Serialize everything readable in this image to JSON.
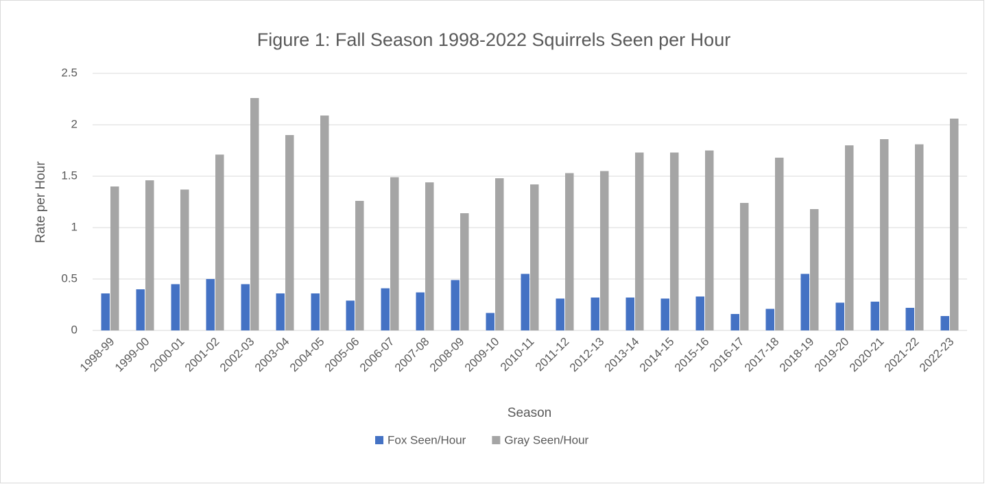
{
  "chart_data": {
    "type": "bar",
    "title": "Figure 1: Fall Season 1998-2022 Squirrels Seen per Hour",
    "x_label": "Season",
    "y_label": "Rate per Hour",
    "categories": [
      "1998-99",
      "1999-00",
      "2000-01",
      "2001-02",
      "2002-03",
      "2003-04",
      "2004-05",
      "2005-06",
      "2006-07",
      "2007-08",
      "2008-09",
      "2009-10",
      "2010-11",
      "2011-12",
      "2012-13",
      "2013-14",
      "2014-15",
      "2015-16",
      "2016-17",
      "2017-18",
      "2018-19",
      "2019-20",
      "2020-21",
      "2021-22",
      "2022-23"
    ],
    "series": [
      {
        "name": "Fox Seen/Hour",
        "color": "#4472c4",
        "values": [
          0.36,
          0.4,
          0.45,
          0.5,
          0.45,
          0.36,
          0.36,
          0.29,
          0.41,
          0.37,
          0.49,
          0.17,
          0.55,
          0.31,
          0.32,
          0.32,
          0.31,
          0.33,
          0.16,
          0.21,
          0.55,
          0.27,
          0.28,
          0.22,
          0.14
        ]
      },
      {
        "name": "Gray Seen/Hour",
        "color": "#a5a5a5",
        "values": [
          1.4,
          1.46,
          1.37,
          1.71,
          2.26,
          1.9,
          2.09,
          1.26,
          1.49,
          1.44,
          1.14,
          1.48,
          1.42,
          1.53,
          1.55,
          1.73,
          1.73,
          1.75,
          1.24,
          1.68,
          1.18,
          1.8,
          1.86,
          1.81,
          2.06
        ]
      }
    ],
    "ylim": [
      0,
      2.5
    ],
    "yticks": [
      0,
      0.5,
      1,
      1.5,
      2,
      2.5
    ],
    "grid": true,
    "legend": "bottom"
  }
}
